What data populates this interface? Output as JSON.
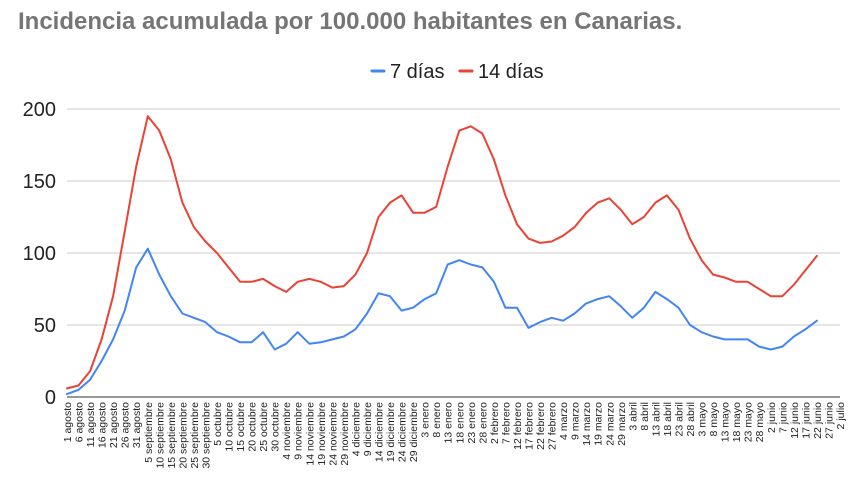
{
  "title": "Incidencia acumulada por 100.000 habitantes en Canarias.",
  "chart_data": {
    "type": "line",
    "title": "Incidencia acumulada por 100.000 habitantes en Canarias.",
    "xlabel": "",
    "ylabel": "",
    "ylim": [
      0,
      200
    ],
    "yticks": [
      0,
      50,
      100,
      150,
      200
    ],
    "grid": true,
    "legend_position": "top",
    "categories": [
      "1 agosto",
      "6 agosto",
      "11 agosto",
      "16 agosto",
      "21 agosto",
      "26 agosto",
      "31 agosto",
      "5 septiembre",
      "10 septiembre",
      "15 septiembre",
      "20 septiembre",
      "25 septiembre",
      "30 septiembre",
      "5 octubre",
      "10 octubre",
      "15 octubre",
      "20 octubre",
      "25 octubre",
      "30 octubre",
      "4 noviembre",
      "9 noviembre",
      "14 noviembre",
      "19 noviembre",
      "24 noviembre",
      "29 noviembre",
      "4 diciembre",
      "9 diciembre",
      "14 diciembre",
      "19 diciembre",
      "24 diciembre",
      "29 diciembre",
      "3 enero",
      "8 enero",
      "13 enero",
      "18 enero",
      "23 enero",
      "28 enero",
      "2 febrero",
      "7 febrero",
      "12 febrero",
      "17 febrero",
      "22 febrero",
      "27 febrero",
      "4 marzo",
      "9 marzo",
      "14 marzo",
      "19 marzo",
      "24 marzo",
      "29 marzo",
      "3 abril",
      "8 abril",
      "13 abril",
      "18 abril",
      "23 abril",
      "28 abril",
      "3 mayo",
      "8 mayo",
      "13 mayo",
      "18 mayo",
      "23 mayo",
      "28 mayo",
      "2 junio",
      "7 junio",
      "12 junio",
      "17 junio",
      "22 junio",
      "27 junio",
      "2 julio"
    ],
    "series": [
      {
        "name": "7 días",
        "color": "#4285f4",
        "values": [
          2,
          5,
          12,
          25,
          40,
          60,
          90,
          103,
          85,
          70,
          58,
          55,
          52,
          45,
          42,
          38,
          38,
          45,
          33,
          37,
          45,
          37,
          38,
          40,
          42,
          47,
          58,
          72,
          70,
          60,
          62,
          68,
          72,
          92,
          95,
          92,
          90,
          80,
          62,
          62,
          48,
          52,
          55,
          53,
          58,
          65,
          68,
          70,
          63,
          55,
          62,
          73,
          68,
          62,
          50,
          45,
          42,
          40,
          40,
          40,
          35,
          33,
          35,
          42,
          47,
          53,
          null,
          null
        ]
      },
      {
        "name": "14 días",
        "color": "#ea4335",
        "values": [
          6,
          8,
          18,
          40,
          70,
          115,
          160,
          195,
          185,
          165,
          135,
          118,
          108,
          100,
          90,
          80,
          80,
          82,
          77,
          73,
          80,
          82,
          80,
          76,
          77,
          85,
          100,
          125,
          135,
          140,
          128,
          128,
          132,
          160,
          185,
          188,
          183,
          165,
          140,
          120,
          110,
          107,
          108,
          112,
          118,
          128,
          135,
          138,
          130,
          120,
          125,
          135,
          140,
          130,
          110,
          95,
          85,
          83,
          80,
          80,
          75,
          70,
          70,
          78,
          88,
          98,
          null,
          null
        ]
      }
    ]
  }
}
